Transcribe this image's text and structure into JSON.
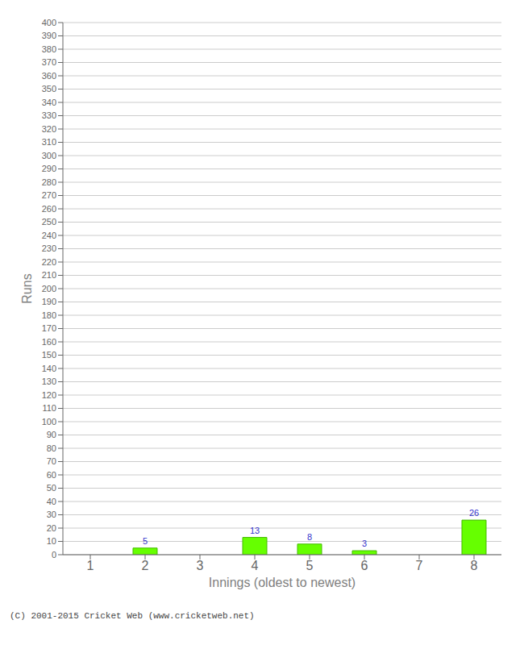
{
  "chart_data": {
    "type": "bar",
    "xlabel": "Innings (oldest to newest)",
    "ylabel": "Runs",
    "categories": [
      "1",
      "2",
      "3",
      "4",
      "5",
      "6",
      "7",
      "8"
    ],
    "values": [
      0,
      5,
      0,
      13,
      8,
      3,
      0,
      26
    ],
    "color": "#66ff00",
    "ylim": [
      0,
      400
    ],
    "yticks": [
      0,
      10,
      20,
      30,
      40,
      50,
      60,
      70,
      80,
      90,
      100,
      110,
      120,
      130,
      140,
      150,
      160,
      170,
      180,
      190,
      200,
      210,
      220,
      230,
      240,
      250,
      260,
      270,
      280,
      290,
      300,
      310,
      320,
      330,
      340,
      350,
      360,
      370,
      380,
      390,
      400
    ],
    "grid": true,
    "data_labels": true,
    "annotations": [
      "(C) 2001-2015 Cricket Web (www.cricketweb.net)"
    ]
  }
}
